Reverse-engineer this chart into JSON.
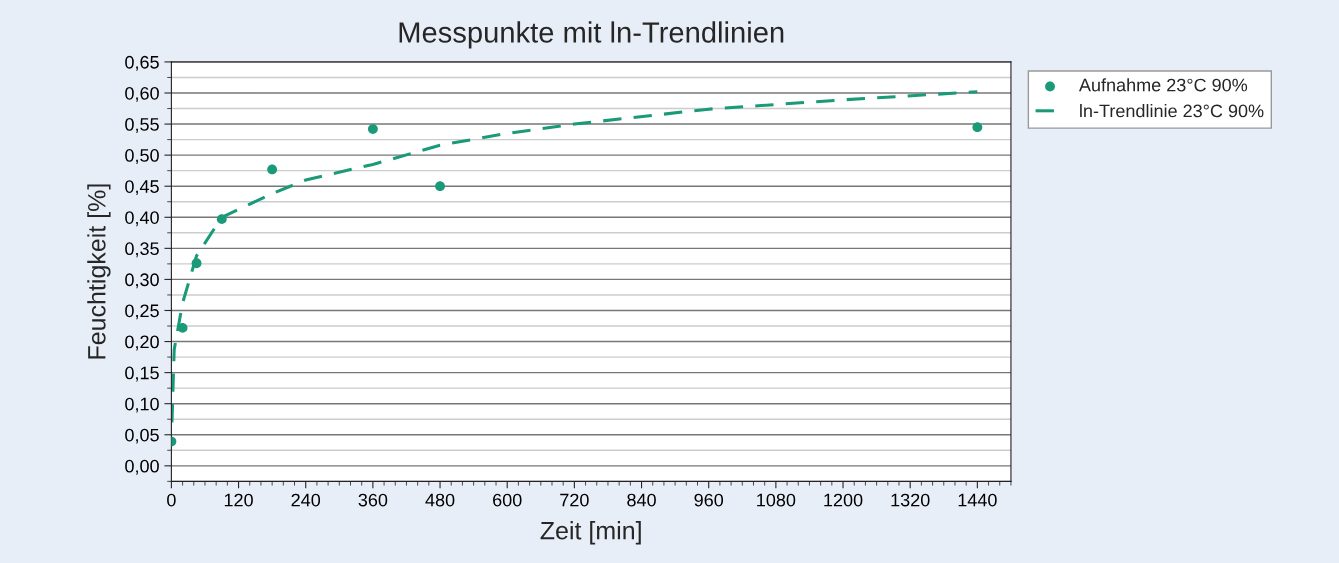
{
  "chart_data": {
    "type": "scatter",
    "title": "Messpunkte mit ln-Trendlinien",
    "xlabel": "Zeit [min]",
    "ylabel": "Feuchtigkeit [%]",
    "xlim": [
      0,
      1500
    ],
    "xticks": [
      0,
      120,
      240,
      360,
      480,
      600,
      720,
      840,
      960,
      1080,
      1200,
      1320,
      1440
    ],
    "ylim": [
      -0.025,
      0.65
    ],
    "yticks": [
      {
        "value": 0,
        "label": "0,00"
      },
      {
        "value": 0.05,
        "label": "0,05"
      },
      {
        "value": 0.1,
        "label": "0,10"
      },
      {
        "value": 0.15,
        "label": "0,15"
      },
      {
        "value": 0.2,
        "label": "0,20"
      },
      {
        "value": 0.25,
        "label": "0,25"
      },
      {
        "value": 0.3,
        "label": "0,30"
      },
      {
        "value": 0.35,
        "label": "0,35"
      },
      {
        "value": 0.4,
        "label": "0,40"
      },
      {
        "value": 0.45,
        "label": "0,45"
      },
      {
        "value": 0.5,
        "label": "0,50"
      },
      {
        "value": 0.55,
        "label": "0,55"
      },
      {
        "value": 0.6,
        "label": "0,60"
      },
      {
        "value": 0.65,
        "label": "0,65"
      }
    ],
    "grid": "y",
    "legend": "top right",
    "series": [
      {
        "name": "Aufnahme 23°C 90%",
        "marker": "circle",
        "color": "#1a9a78",
        "x": [
          0,
          20,
          45,
          90,
          180,
          360,
          480,
          1440
        ],
        "values": [
          0.039,
          0.222,
          0.326,
          0.397,
          0.477,
          0.542,
          0.45,
          0.545
        ]
      },
      {
        "name": "ln-Trendlinie 23°C 90%",
        "type": "line",
        "line_style": "dashed",
        "color": "#1a9a78",
        "x": [
          1,
          5,
          20,
          45,
          90,
          180,
          240,
          360,
          480,
          600,
          720,
          960,
          1200,
          1440
        ],
        "values": [
          0.07,
          0.187,
          0.262,
          0.338,
          0.4,
          0.438,
          0.46,
          0.485,
          0.516,
          0.535,
          0.55,
          0.574,
          0.589,
          0.602
        ]
      }
    ]
  }
}
